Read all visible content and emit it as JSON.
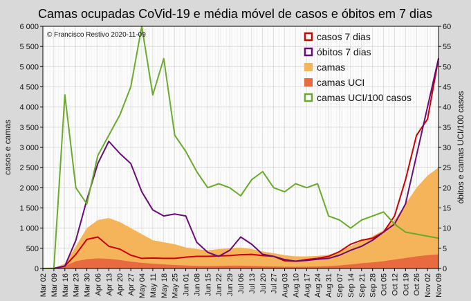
{
  "chart_data": {
    "type": "line",
    "title": "Camas ocupadas CoVid-19 e média móvel de casos e óbitos em 7 dias",
    "subtitle": "© Francisco Restivo 2020-11-09",
    "ylabel": "casos e camas",
    "ylabel_right": "óbitos e camas UCI/100 casos",
    "xlabel": "",
    "ylim": [
      0,
      6000
    ],
    "ylim_right": [
      0,
      60
    ],
    "yticks": [
      "0",
      "500",
      "1 000",
      "1 500",
      "2 000",
      "2 500",
      "3 000",
      "3 500",
      "4 000",
      "4 500",
      "5 000",
      "5 500",
      "6 000"
    ],
    "yticks_right": [
      "0",
      "5",
      "10",
      "15",
      "20",
      "25",
      "30",
      "35",
      "40",
      "45",
      "50",
      "55",
      "60"
    ],
    "grid": true,
    "legend_position": "top-right",
    "x_dates": [
      "Mar 02",
      "Mar 09",
      "Mar 16",
      "Mar 23",
      "Mar 30",
      "Apr 06",
      "Apr 13",
      "Apr 20",
      "Apr 27",
      "May 04",
      "May 11",
      "May 18",
      "May 25",
      "Jun 01",
      "Jun 08",
      "Jun 15",
      "Jun 22",
      "Jun 29",
      "Jul 06",
      "Jul 13",
      "Jul 20",
      "Jul 27",
      "Aug 03",
      "Aug 10",
      "Aug 17",
      "Aug 24",
      "Aug 31",
      "Sep 07",
      "Sep 14",
      "Sep 21",
      "Sep 28",
      "Oct 05",
      "Oct 12",
      "Oct 19",
      "Oct 26",
      "Nov 02",
      "Nov 09"
    ],
    "xticks": [
      "Mar 02",
      "Mar 09",
      "Mar 16",
      "Mar 23",
      "Mar 30",
      "Apr 06",
      "Apr 13",
      "Apr 20",
      "Apr 27",
      "May 04",
      "May 11",
      "May 18",
      "May 25",
      "Jun 01",
      "Jun 08",
      "Jun 15",
      "Jun 22",
      "Jun 29",
      "Jul 06",
      "Jul 13",
      "Jul 20",
      "Jul 27",
      "Aug 03",
      "Aug 10",
      "Aug 17",
      "Aug 24",
      "Aug 31",
      "Sep 07",
      "Sep 14",
      "Sep 21",
      "Sep 28",
      "Oct 05",
      "Oct 12",
      "Oct 19",
      "Oct 26",
      "Nov 02",
      "Nov 09"
    ],
    "series": [
      {
        "name": "casos 7 dias",
        "axis": "left",
        "kind": "line",
        "color": "#cc0000",
        "values": [
          0,
          5,
          60,
          350,
          720,
          780,
          550,
          480,
          330,
          250,
          260,
          250,
          250,
          280,
          300,
          300,
          310,
          320,
          340,
          350,
          320,
          300,
          190,
          180,
          220,
          250,
          300,
          420,
          600,
          700,
          750,
          900,
          1300,
          2200,
          3300,
          3700,
          5200
        ]
      },
      {
        "name": "óbitos 7 dias",
        "axis": "left",
        "kind": "line",
        "color": "#6a0a78",
        "values": [
          0,
          0,
          60,
          700,
          1700,
          2600,
          3150,
          2850,
          2600,
          1900,
          1450,
          1300,
          1350,
          1300,
          650,
          400,
          300,
          450,
          780,
          600,
          350,
          300,
          220,
          180,
          200,
          230,
          250,
          330,
          450,
          550,
          700,
          900,
          1100,
          1600,
          2800,
          4000,
          5200
        ]
      },
      {
        "name": "camas",
        "axis": "left",
        "kind": "area",
        "color": "#f5b35a",
        "values": [
          0,
          10,
          120,
          550,
          1000,
          1200,
          1250,
          1150,
          1000,
          850,
          700,
          650,
          600,
          520,
          480,
          450,
          480,
          500,
          520,
          480,
          420,
          380,
          330,
          300,
          300,
          310,
          340,
          420,
          550,
          680,
          800,
          950,
          1200,
          1600,
          2000,
          2300,
          2500
        ]
      },
      {
        "name": "camas UCI",
        "axis": "left",
        "kind": "area",
        "color": "#e86a3e",
        "values": [
          0,
          5,
          60,
          180,
          230,
          250,
          240,
          210,
          170,
          140,
          120,
          100,
          85,
          75,
          65,
          60,
          65,
          70,
          70,
          65,
          55,
          50,
          45,
          42,
          45,
          50,
          60,
          75,
          100,
          130,
          150,
          180,
          220,
          260,
          300,
          330,
          350
        ]
      },
      {
        "name": "camas UCI/100 casos",
        "axis": "right",
        "kind": "line",
        "color": "#6aaa2a",
        "values": [
          0,
          0,
          43,
          20,
          16,
          28,
          33,
          38,
          45,
          60,
          43,
          52,
          33,
          29,
          24,
          20,
          21,
          20,
          18,
          22,
          24,
          20,
          19,
          21,
          20,
          21,
          13,
          12,
          10,
          12,
          13,
          14,
          11,
          9,
          8.5,
          8,
          7.5
        ]
      }
    ]
  },
  "legend": {
    "items": [
      {
        "label": "casos 7 dias",
        "color": "#cc0000",
        "style": "outline"
      },
      {
        "label": "óbitos 7 dias",
        "color": "#6a0a78",
        "style": "outline"
      },
      {
        "label": "camas",
        "color": "#f5b35a",
        "style": "fill"
      },
      {
        "label": "camas UCI",
        "color": "#e86a3e",
        "style": "fill"
      },
      {
        "label": "camas UCI/100 casos",
        "color": "#6aaa2a",
        "style": "outline"
      }
    ]
  }
}
